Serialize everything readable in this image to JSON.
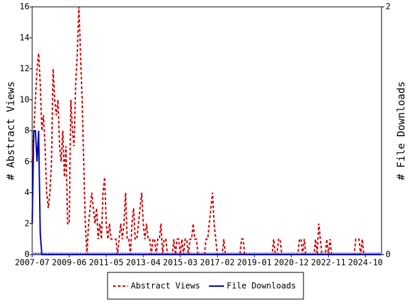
{
  "chart_data": {
    "type": "line",
    "ylabel": "# Abstract Views",
    "y2label": "# File Downloads",
    "ylim": [
      0,
      16
    ],
    "yticks": [
      0,
      2,
      4,
      6,
      8,
      10,
      12,
      14,
      16
    ],
    "y2lim": [
      0,
      2
    ],
    "y2ticks": [
      0,
      2
    ],
    "categories": [
      "2007-07",
      null,
      null,
      null,
      null,
      null,
      null,
      null,
      null,
      null,
      null,
      null,
      null,
      null,
      null,
      null,
      null,
      null,
      null,
      null,
      null,
      null,
      null,
      "2009-06",
      null,
      null,
      null,
      null,
      null,
      null,
      null,
      null,
      null,
      null,
      null,
      null,
      null,
      null,
      null,
      null,
      null,
      null,
      null,
      null,
      null,
      null,
      "2011-05",
      null,
      null,
      null,
      null,
      null,
      null,
      null,
      null,
      null,
      null,
      null,
      null,
      null,
      null,
      null,
      null,
      null,
      null,
      null,
      null,
      null,
      null,
      "2013-04",
      null,
      null,
      null,
      null,
      null,
      null,
      null,
      null,
      null,
      null,
      null,
      null,
      null,
      null,
      null,
      null,
      null,
      null,
      null,
      null,
      null,
      null,
      "2015-03",
      null,
      null,
      null,
      null,
      null,
      null,
      null,
      null,
      null,
      null,
      null,
      null,
      null,
      null,
      null,
      null,
      null,
      null,
      null,
      null,
      null,
      null,
      "2017-02",
      null,
      null,
      null,
      null,
      null,
      null,
      null,
      null,
      null,
      null,
      null,
      null,
      null,
      null,
      null,
      null,
      null,
      null,
      null,
      null,
      null,
      null,
      "2019-01",
      null,
      null,
      null,
      null,
      null,
      null,
      null,
      null,
      null,
      null,
      null,
      null,
      null,
      null,
      null,
      null,
      null,
      null,
      null,
      null,
      null,
      null,
      "2020-12",
      null,
      null,
      null,
      null,
      null,
      null,
      null,
      null,
      null,
      null,
      null,
      null,
      null,
      null,
      null,
      null,
      null,
      null,
      null,
      null,
      null,
      null,
      "2022-11",
      null,
      null,
      null,
      null,
      null,
      null,
      null,
      null,
      null,
      null,
      null,
      null,
      null,
      null,
      null,
      null,
      null,
      null,
      null,
      null,
      null,
      null,
      "2024-10",
      null,
      null,
      null,
      null,
      null,
      null,
      null,
      null,
      null,
      null
    ],
    "series": [
      {
        "name": "Abstract Views",
        "color": "#cc0000",
        "line_style": "dashed",
        "values": [
          6,
          8,
          10,
          12,
          13,
          11,
          8,
          9,
          7,
          4,
          3,
          4,
          6,
          12,
          10,
          9,
          10,
          7,
          6,
          8,
          5,
          7,
          2,
          2,
          10,
          8,
          7,
          11,
          13,
          16,
          13,
          10,
          6,
          2,
          0,
          2,
          3,
          4,
          3,
          2,
          3,
          1,
          2,
          1,
          4,
          5,
          2,
          1,
          2,
          1,
          1,
          1,
          1,
          0,
          1,
          2,
          1,
          2,
          4,
          1,
          1,
          0,
          2,
          3,
          1,
          1,
          2,
          3,
          4,
          2,
          1,
          2,
          1,
          1,
          0,
          1,
          1,
          0,
          1,
          1,
          2,
          0,
          1,
          1,
          0,
          0,
          0,
          0,
          1,
          0,
          1,
          1,
          0,
          1,
          0,
          1,
          1,
          0,
          1,
          1,
          2,
          1,
          1,
          0,
          0,
          0,
          0,
          0,
          1,
          1,
          2,
          3,
          4,
          2,
          1,
          0,
          0,
          0,
          0,
          1,
          0,
          0,
          0,
          0,
          0,
          0,
          0,
          0,
          0,
          0,
          1,
          1,
          0,
          0,
          0,
          0,
          0,
          0,
          0,
          0,
          0,
          0,
          0,
          0,
          0,
          0,
          0,
          0,
          0,
          0,
          1,
          0,
          0,
          1,
          1,
          0,
          0,
          0,
          0,
          0,
          0,
          0,
          0,
          0,
          0,
          0,
          1,
          1,
          0,
          1,
          0,
          0,
          0,
          0,
          0,
          0,
          1,
          0,
          2,
          1,
          0,
          0,
          0,
          1,
          0,
          1,
          0,
          0,
          0,
          0,
          0,
          0,
          0,
          0,
          0,
          0,
          0,
          0,
          0,
          0,
          0,
          1,
          1,
          1,
          0,
          1,
          0,
          0,
          0,
          0,
          0,
          0,
          0,
          0,
          0,
          0,
          0,
          0
        ]
      },
      {
        "name": "File Downloads",
        "color": "#0000aa",
        "line_style": "solid",
        "axis": "y2",
        "values": [
          0.25,
          1,
          1,
          0.75,
          1,
          0.17,
          0,
          0,
          0,
          0,
          0,
          0,
          0,
          0,
          0,
          0,
          0,
          0,
          0,
          0,
          0,
          0,
          0,
          0,
          0,
          0,
          0,
          0,
          0,
          0,
          0,
          0,
          0,
          0,
          0,
          0,
          0,
          0,
          0,
          0,
          0,
          0,
          0,
          0,
          0,
          0,
          0,
          0,
          0,
          0,
          0,
          0,
          0,
          0,
          0,
          0,
          0,
          0,
          0,
          0,
          0,
          0,
          0,
          0,
          0,
          0,
          0,
          0,
          0,
          0,
          0,
          0,
          0,
          0,
          0,
          0,
          0,
          0,
          0,
          0,
          0,
          0,
          0,
          0,
          0,
          0,
          0,
          0,
          0,
          0,
          0,
          0,
          0,
          0,
          0,
          0,
          0,
          0,
          0,
          0,
          0,
          0,
          0,
          0,
          0,
          0,
          0,
          0,
          0,
          0,
          0,
          0,
          0,
          0,
          0,
          0,
          0,
          0,
          0,
          0,
          0,
          0,
          0,
          0,
          0,
          0,
          0,
          0,
          0,
          0,
          0,
          0,
          0,
          0,
          0,
          0,
          0,
          0,
          0,
          0,
          0,
          0,
          0,
          0,
          0,
          0,
          0,
          0,
          0,
          0,
          0,
          0,
          0,
          0,
          0,
          0,
          0,
          0,
          0,
          0,
          0,
          0,
          0,
          0,
          0,
          0,
          0,
          0,
          0,
          0,
          0,
          0,
          0,
          0,
          0,
          0,
          0,
          0,
          0,
          0,
          0,
          0,
          0,
          0,
          0,
          0,
          0,
          0,
          0,
          0,
          0,
          0,
          0,
          0,
          0,
          0,
          0,
          0,
          0,
          0,
          0,
          0,
          0,
          0,
          0,
          0,
          0,
          0,
          0,
          0,
          0,
          0,
          0,
          0,
          0,
          0,
          0,
          0
        ]
      }
    ],
    "legend": "bottom"
  }
}
